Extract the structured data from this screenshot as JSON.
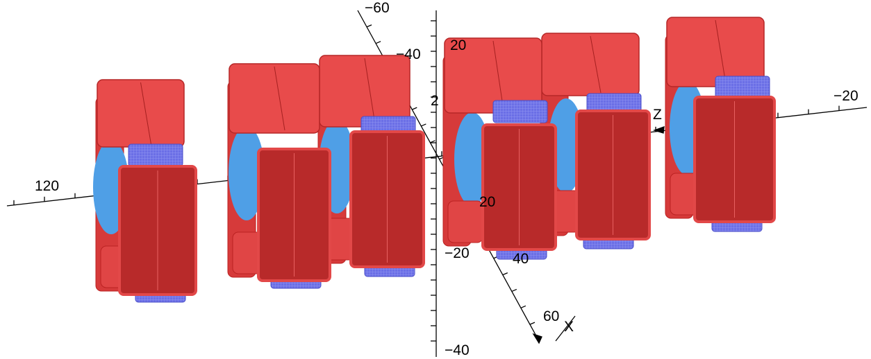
{
  "axis_labels": {
    "top_cut": "−60",
    "upper_vertical": "−40",
    "upper_right": "20",
    "partial": "2",
    "z_axis": "Z",
    "right_end": "−20",
    "left_end": "120",
    "x_near": "20",
    "vertical_mid": "−20",
    "x_mid": "40",
    "x_far": "60",
    "x_axis": "X",
    "vertical_bottom": "−40"
  }
}
